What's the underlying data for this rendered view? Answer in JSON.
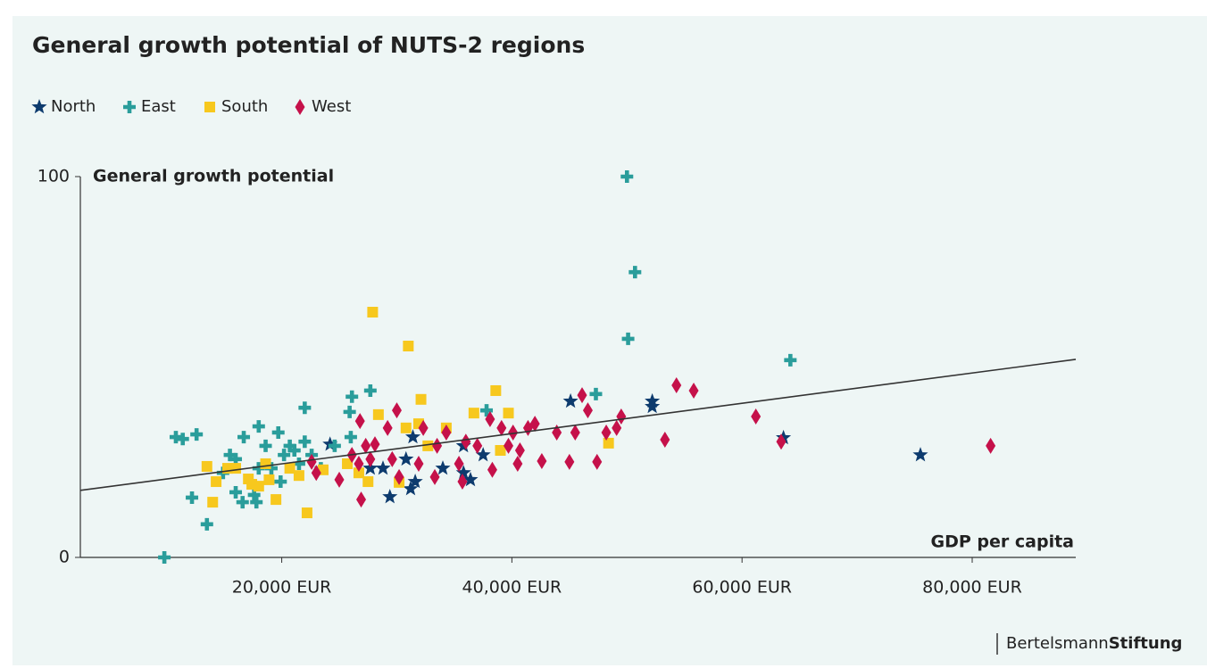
{
  "chart_data": {
    "type": "scatter",
    "title": "General growth potential of NUTS-2 regions",
    "y_label": "General growth potential",
    "x_label": "GDP per capita",
    "xlim": [
      2500,
      89000
    ],
    "ylim": [
      0,
      100
    ],
    "xticks": [
      {
        "value": 20000,
        "label": "20,000 EUR"
      },
      {
        "value": 40000,
        "label": "40,000 EUR"
      },
      {
        "value": 60000,
        "label": "60,000 EUR"
      },
      {
        "value": 80000,
        "label": "80,000 EUR"
      }
    ],
    "yticks": [
      0,
      100
    ],
    "legend": "top-left",
    "series": [
      {
        "name": "North",
        "color": "#0d3b6e",
        "marker": "star",
        "x": [
          24200,
          28800,
          29400,
          31200,
          31600,
          30800,
          31400,
          34000,
          35800,
          36400,
          37500,
          45100,
          52200,
          52200,
          63600,
          75500,
          27700,
          35800
        ],
        "values": [
          29.7,
          23.4,
          15.9,
          18.0,
          19.9,
          25.8,
          31.6,
          23.4,
          22.2,
          20.4,
          26.9,
          41.0,
          41.0,
          39.6,
          31.4,
          26.9,
          23.4,
          29.3
        ]
      },
      {
        "name": "East",
        "color": "#2a9d9b",
        "marker": "cross",
        "x": [
          9800,
          10800,
          11400,
          12600,
          12200,
          13500,
          14900,
          15500,
          16000,
          16000,
          16600,
          16700,
          17600,
          17800,
          18000,
          18000,
          18600,
          19100,
          19700,
          19900,
          20200,
          20700,
          21100,
          21500,
          22000,
          22000,
          22600,
          23400,
          24600,
          25900,
          26100,
          26000,
          27700,
          37800,
          47300,
          50000,
          50700,
          50100,
          64200
        ],
        "values": [
          0,
          31.6,
          31.1,
          32.3,
          15.7,
          8.7,
          22.2,
          26.9,
          25.8,
          17.1,
          14.5,
          31.6,
          16.4,
          14.5,
          34.4,
          23.4,
          29.3,
          23.4,
          32.8,
          19.9,
          26.9,
          29.3,
          28.1,
          24.6,
          39.3,
          30.4,
          26.9,
          23.4,
          29.3,
          38.2,
          42.2,
          31.6,
          43.8,
          38.6,
          42.9,
          100,
          74.9,
          57.4,
          51.8
        ]
      },
      {
        "name": "South",
        "color": "#f7c81e",
        "marker": "square",
        "x": [
          13500,
          14000,
          14300,
          15300,
          16000,
          17100,
          17400,
          18000,
          18600,
          18900,
          19500,
          20700,
          21500,
          22200,
          23600,
          25700,
          26700,
          27500,
          27900,
          28400,
          30200,
          30800,
          31000,
          31900,
          32100,
          32700,
          34300,
          36700,
          38600,
          39000,
          39700,
          48400
        ],
        "values": [
          23.9,
          14.5,
          19.9,
          23.4,
          23.4,
          20.6,
          19.2,
          18.7,
          24.6,
          20.4,
          15.2,
          23.4,
          21.5,
          11.7,
          23.0,
          24.6,
          22.2,
          19.9,
          64.4,
          37.5,
          19.7,
          34.0,
          55.5,
          35.1,
          41.5,
          29.3,
          34.0,
          37.9,
          43.8,
          28.1,
          37.9,
          30.0
        ]
      },
      {
        "name": "West",
        "color": "#c5114a",
        "marker": "diamond",
        "x": [
          22600,
          23000,
          25000,
          26100,
          26700,
          26800,
          26900,
          27300,
          27700,
          28100,
          29600,
          30000,
          29200,
          30200,
          31900,
          32300,
          33300,
          33500,
          34300,
          35400,
          35700,
          36000,
          37000,
          38100,
          38300,
          39100,
          39700,
          40100,
          40500,
          40700,
          41400,
          42000,
          42600,
          43900,
          45000,
          45500,
          46100,
          46600,
          47400,
          48200,
          49100,
          49500,
          53300,
          54300,
          55800,
          61200,
          63400,
          81600
        ],
        "values": [
          25.1,
          22.2,
          20.4,
          26.9,
          24.6,
          35.8,
          15.2,
          29.3,
          25.8,
          29.7,
          25.8,
          38.6,
          34.0,
          21.1,
          24.6,
          34.0,
          21.1,
          29.3,
          32.8,
          24.6,
          19.9,
          30.4,
          29.3,
          36.3,
          23.0,
          34.0,
          29.3,
          32.8,
          24.6,
          28.1,
          34.0,
          35.1,
          25.3,
          32.8,
          25.1,
          32.8,
          42.6,
          38.6,
          25.1,
          32.8,
          34.0,
          37.0,
          30.9,
          45.2,
          43.8,
          37.0,
          30.4,
          29.3
        ]
      }
    ],
    "trendline": {
      "color": "#333333",
      "x": [
        2500,
        89000
      ],
      "values": [
        17.6,
        52.0
      ]
    }
  },
  "brand": {
    "name_regular": "Bertelsmann",
    "name_bold": "Stiftung"
  }
}
